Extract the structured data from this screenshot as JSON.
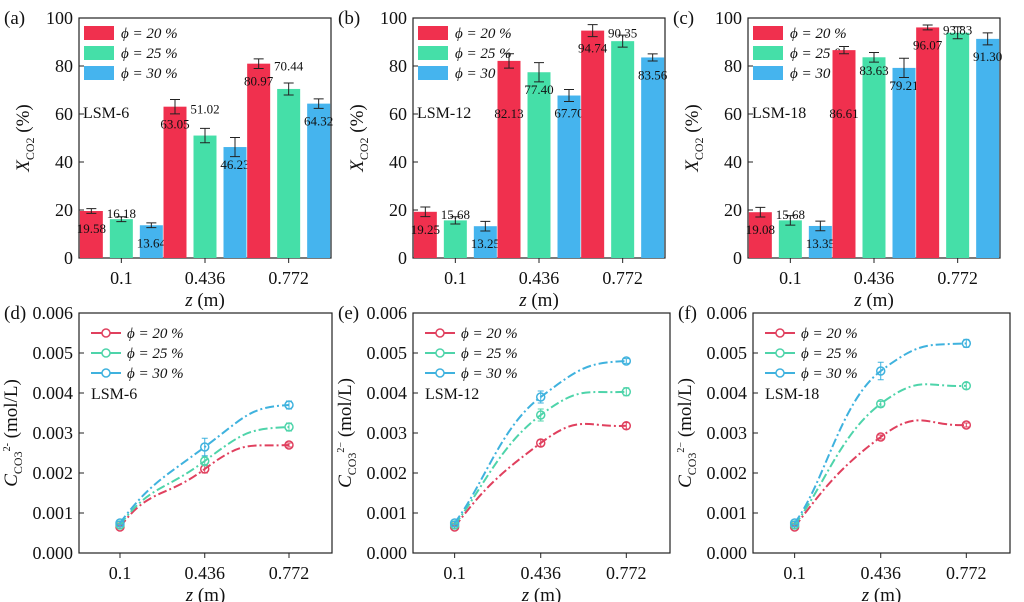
{
  "colors": {
    "phi20": "#F0304E",
    "phi25": "#45DFA8",
    "phi30": "#45B4EE",
    "line20": "#E0405E",
    "line25": "#4ED4AA",
    "line30": "#3FB2DE"
  },
  "chart_data": [
    {
      "panel": "(a)",
      "type": "bar",
      "sample": "LSM-6",
      "categories": [
        "0.1",
        "0.436",
        "0.772"
      ],
      "xlabel": {
        "var": "z",
        "unit": " (m)"
      },
      "ylabel": {
        "var": "X",
        "sub": "CO2",
        "unit": " (%)"
      },
      "ylim": [
        0,
        100
      ],
      "yticks": [
        "0",
        "20",
        "40",
        "60",
        "80",
        "100"
      ],
      "series": [
        {
          "name": "ϕ = 20 %",
          "values": [
            19.58,
            63.05,
            80.97
          ],
          "errors": [
            1,
            3,
            2
          ],
          "labels": [
            "19.58",
            "63.05",
            "80.97"
          ]
        },
        {
          "name": "ϕ = 25 %",
          "values": [
            16.18,
            51.02,
            70.44
          ],
          "errors": [
            1,
            3,
            2.5
          ],
          "labels": [
            "16.18",
            "51.02",
            "70.44"
          ]
        },
        {
          "name": "ϕ = 30 %",
          "values": [
            13.64,
            46.23,
            64.32
          ],
          "errors": [
            1,
            4,
            2
          ],
          "labels": [
            "13.64",
            "46.23",
            "64.32"
          ]
        }
      ]
    },
    {
      "panel": "(b)",
      "type": "bar",
      "sample": "LSM-12",
      "categories": [
        "0.1",
        "0.436",
        "0.772"
      ],
      "xlabel": {
        "var": "z",
        "unit": " (m)"
      },
      "ylabel": {
        "var": "X",
        "sub": "CO2",
        "unit": " (%)"
      },
      "ylim": [
        0,
        100
      ],
      "yticks": [
        "0",
        "20",
        "40",
        "60",
        "80",
        "100"
      ],
      "series": [
        {
          "name": "ϕ = 20 %",
          "values": [
            19.25,
            82.13,
            94.74
          ],
          "errors": [
            2,
            3,
            2.5
          ],
          "labels": [
            "19.25",
            "82.13",
            "94.74"
          ]
        },
        {
          "name": "ϕ = 25 %",
          "values": [
            15.68,
            77.4,
            90.35
          ],
          "errors": [
            1.5,
            4,
            2.5
          ],
          "labels": [
            "15.68",
            "77.40",
            "90.35"
          ]
        },
        {
          "name": "ϕ = 30 %",
          "values": [
            13.25,
            67.7,
            83.56
          ],
          "errors": [
            2,
            2.5,
            1.5
          ],
          "labels": [
            "13.25",
            "67.70",
            "83.56"
          ]
        }
      ]
    },
    {
      "panel": "(c)",
      "type": "bar",
      "sample": "LSM-18",
      "categories": [
        "0.1",
        "0.436",
        "0.772"
      ],
      "xlabel": {
        "var": "z",
        "unit": " (m)"
      },
      "ylabel": {
        "var": "X",
        "sub": "CO2",
        "unit": " (%)"
      },
      "ylim": [
        0,
        100
      ],
      "yticks": [
        "0",
        "20",
        "40",
        "60",
        "80",
        "100"
      ],
      "series": [
        {
          "name": "ϕ = 20 %",
          "values": [
            19.08,
            86.61,
            96.07
          ],
          "errors": [
            2,
            1.5,
            1
          ],
          "labels": [
            "19.08",
            "86.61",
            "96.07"
          ]
        },
        {
          "name": "ϕ = 25 %",
          "values": [
            15.68,
            83.63,
            93.83
          ],
          "errors": [
            2,
            2,
            2.5
          ],
          "labels": [
            "15.68",
            "83.63",
            "93.83"
          ]
        },
        {
          "name": "ϕ = 30 %",
          "values": [
            13.35,
            79.21,
            91.3
          ],
          "errors": [
            2,
            4,
            2.5
          ],
          "labels": [
            "13.35",
            "79.21",
            "91.30"
          ]
        }
      ]
    },
    {
      "panel": "(d)",
      "type": "line",
      "sample": "LSM-6",
      "categories": [
        "0.1",
        "0.436",
        "0.772"
      ],
      "xlabel": {
        "var": "z",
        "unit": " (m)"
      },
      "ylabel": {
        "var": "C",
        "sub": "CO3",
        "sup": "2-",
        "unit": " (mol/L)"
      },
      "ylim": [
        0,
        0.006
      ],
      "yticks": [
        "0.000",
        "0.001",
        "0.002",
        "0.003",
        "0.004",
        "0.005",
        "0.006"
      ],
      "series": [
        {
          "name": "ϕ = 20 %",
          "values": [
            0.00065,
            0.0021,
            0.0027
          ],
          "errors": [
            4e-05,
            0.0001,
            5e-05
          ]
        },
        {
          "name": "ϕ = 25 %",
          "values": [
            0.0007,
            0.0023,
            0.00315
          ],
          "errors": [
            4e-05,
            0.00012,
            0.0001
          ]
        },
        {
          "name": "ϕ = 30 %",
          "values": [
            0.00075,
            0.00265,
            0.0037
          ],
          "errors": [
            4e-05,
            0.00022,
            0.0001
          ]
        }
      ]
    },
    {
      "panel": "(e)",
      "type": "line",
      "sample": "LSM-12",
      "categories": [
        "0.1",
        "0.436",
        "0.772"
      ],
      "xlabel": {
        "var": "z",
        "unit": " (m)"
      },
      "ylabel": {
        "var": "C",
        "sub": "CO3",
        "sup": "2−",
        "unit": " (mol/L)"
      },
      "ylim": [
        0,
        0.006
      ],
      "yticks": [
        "0.000",
        "0.001",
        "0.002",
        "0.003",
        "0.004",
        "0.005",
        "0.006"
      ],
      "series": [
        {
          "name": "ϕ = 20 %",
          "values": [
            0.00065,
            0.00275,
            0.00318
          ],
          "errors": [
            4e-05,
            8e-05,
            8e-05
          ]
        },
        {
          "name": "ϕ = 25 %",
          "values": [
            0.0007,
            0.00345,
            0.00403
          ],
          "errors": [
            4e-05,
            0.00015,
            0.0001
          ]
        },
        {
          "name": "ϕ = 30 %",
          "values": [
            0.00075,
            0.0039,
            0.0048
          ],
          "errors": [
            4e-05,
            0.00015,
            6e-05
          ]
        }
      ]
    },
    {
      "panel": "(f)",
      "type": "line",
      "sample": "LSM-18",
      "categories": [
        "0.1",
        "0.436",
        "0.772"
      ],
      "xlabel": {
        "var": "z",
        "unit": " (m)"
      },
      "ylabel": {
        "var": "C",
        "sub": "CO3",
        "sup": "2−",
        "unit": " (mol/L)"
      },
      "ylim": [
        0,
        0.006
      ],
      "yticks": [
        "0.000",
        "0.001",
        "0.002",
        "0.003",
        "0.004",
        "0.005",
        "0.006"
      ],
      "series": [
        {
          "name": "ϕ = 20 %",
          "values": [
            0.00065,
            0.0029,
            0.0032
          ],
          "errors": [
            4e-05,
            5e-05,
            5e-05
          ]
        },
        {
          "name": "ϕ = 25 %",
          "values": [
            0.0007,
            0.00373,
            0.00418
          ],
          "errors": [
            4e-05,
            6e-05,
            8e-05
          ]
        },
        {
          "name": "ϕ = 30 %",
          "values": [
            0.00075,
            0.00455,
            0.00524
          ],
          "errors": [
            4e-05,
            0.00022,
            0.0001
          ]
        }
      ]
    }
  ]
}
